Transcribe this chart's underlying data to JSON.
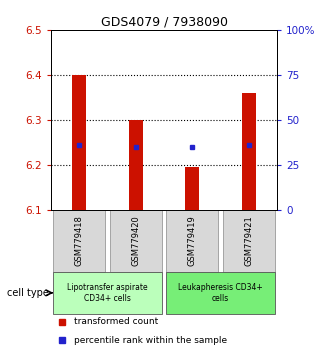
{
  "title": "GDS4079 / 7938090",
  "samples": [
    "GSM779418",
    "GSM779420",
    "GSM779419",
    "GSM779421"
  ],
  "bar_bottoms": [
    6.1,
    6.1,
    6.1,
    6.1
  ],
  "bar_tops": [
    6.4,
    6.3,
    6.195,
    6.36
  ],
  "percentile_values": [
    6.245,
    6.24,
    6.24,
    6.245
  ],
  "ylim": [
    6.1,
    6.5
  ],
  "yticks_left": [
    6.1,
    6.2,
    6.3,
    6.4,
    6.5
  ],
  "yticks_right": [
    0,
    25,
    50,
    75,
    100
  ],
  "bar_color": "#cc1100",
  "dot_color": "#2222cc",
  "group1_label": "Lipotransfer aspirate\nCD34+ cells",
  "group2_label": "Leukapheresis CD34+\ncells",
  "group1_color": "#bbffbb",
  "group2_color": "#77ee77",
  "cell_type_label": "cell type",
  "legend_red_label": "transformed count",
  "legend_blue_label": "percentile rank within the sample",
  "background_color": "#ffffff",
  "xticklabel_bg": "#d8d8d8"
}
